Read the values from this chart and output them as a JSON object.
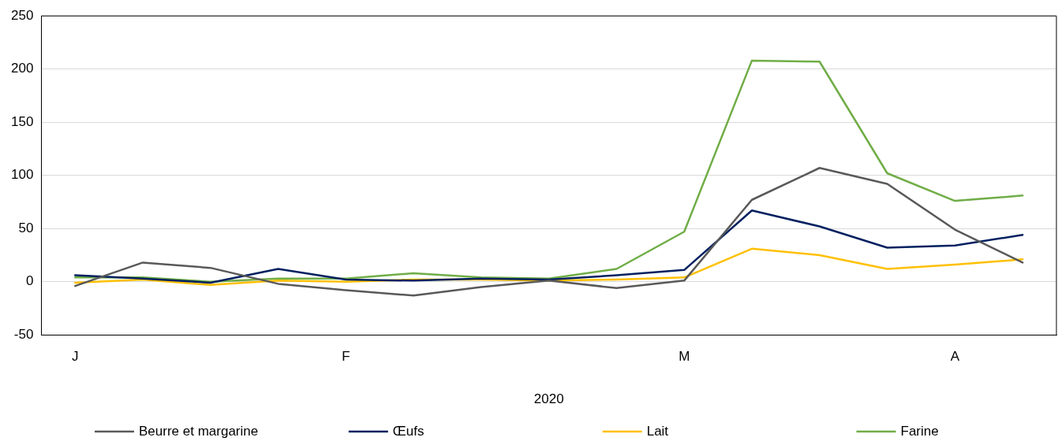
{
  "chart_data": {
    "type": "line",
    "xlabel": "2020",
    "categories": [
      "J",
      null,
      null,
      null,
      "F",
      null,
      null,
      null,
      null,
      "M",
      null,
      null,
      null,
      "A",
      null
    ],
    "series": [
      {
        "name": "Beurre et margarine",
        "color": "#595959",
        "values": [
          -4,
          18,
          13,
          -2,
          -8,
          -13,
          -5,
          1,
          -6,
          1,
          77,
          107,
          92,
          49,
          18
        ]
      },
      {
        "name": "Œufs",
        "color": "#002060",
        "values": [
          6,
          3,
          -1,
          12,
          2,
          1,
          3,
          2,
          6,
          11,
          67,
          52,
          32,
          34,
          44
        ]
      },
      {
        "name": "Lait",
        "color": "#ffc000",
        "values": [
          -1,
          2,
          -3,
          1,
          0,
          2,
          2,
          1,
          2,
          4,
          31,
          25,
          12,
          16,
          21
        ]
      },
      {
        "name": "Farine",
        "color": "#70ad47",
        "values": [
          4,
          4,
          0,
          3,
          3,
          8,
          4,
          3,
          12,
          47,
          208,
          207,
          102,
          76,
          81
        ]
      }
    ],
    "ylim": [
      -50,
      250
    ],
    "yticks": [
      -50,
      0,
      50,
      100,
      150,
      200,
      250
    ],
    "grid": "y",
    "legend": "bottom",
    "marker": "none",
    "line_style": "solid"
  }
}
